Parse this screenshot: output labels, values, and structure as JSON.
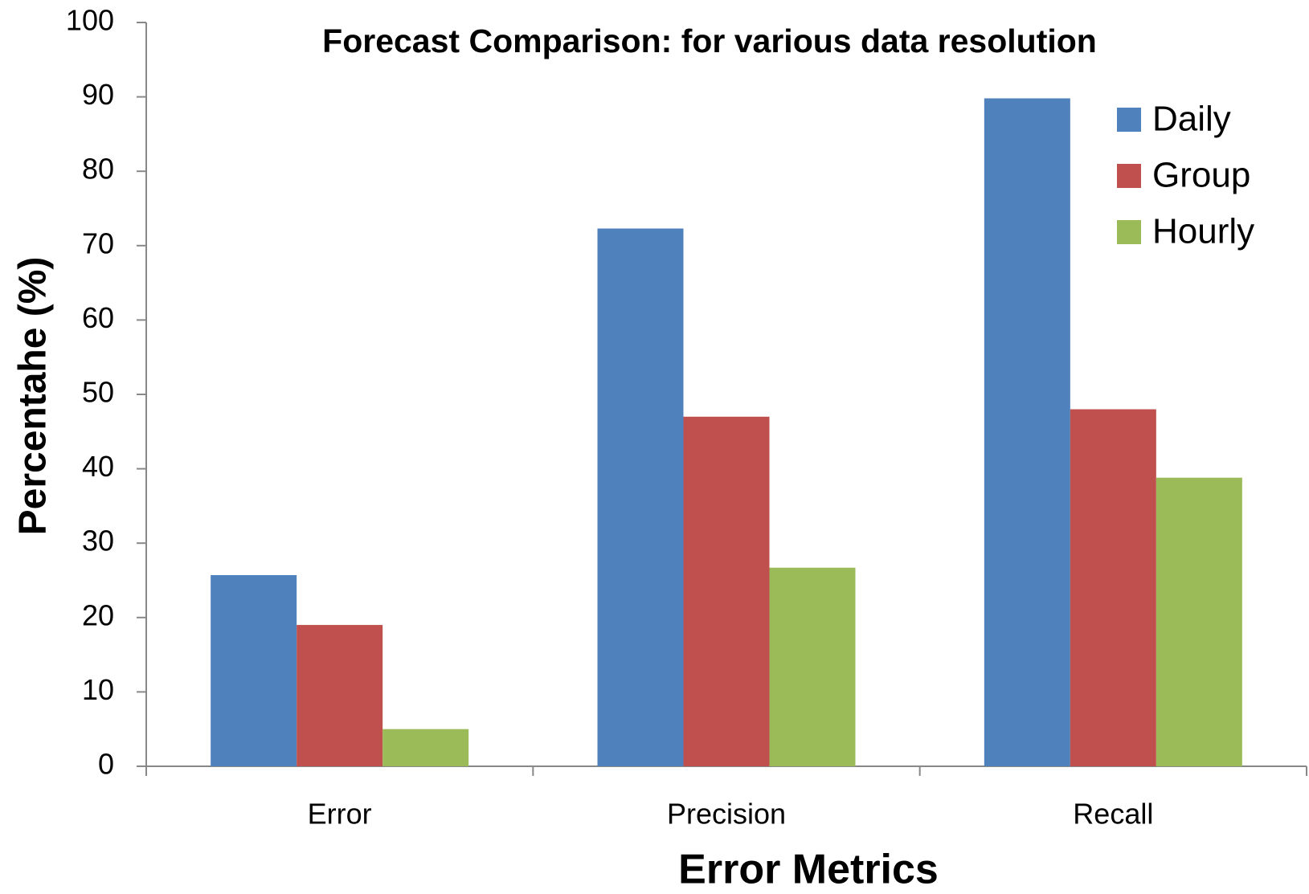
{
  "chart_data": {
    "type": "bar",
    "title": "Forecast Comparison:  for various data resolution",
    "x_label": "Error Metrics",
    "y_label": "Percentahe (%)",
    "categories": [
      "Error",
      "Precision",
      "Recall"
    ],
    "series": [
      {
        "name": "Daily",
        "color": "#4f81bd",
        "values": [
          25.7,
          72.3,
          89.8
        ]
      },
      {
        "name": "Group",
        "color": "#c0504d",
        "values": [
          19,
          47,
          48
        ]
      },
      {
        "name": "Hourly",
        "color": "#9bbb59",
        "values": [
          5,
          26.7,
          38.8
        ]
      }
    ],
    "ylim": [
      0,
      100
    ],
    "yticks": [
      0,
      10,
      20,
      30,
      40,
      50,
      60,
      70,
      80,
      90,
      100
    ],
    "grid": false,
    "legend": "top-right"
  }
}
